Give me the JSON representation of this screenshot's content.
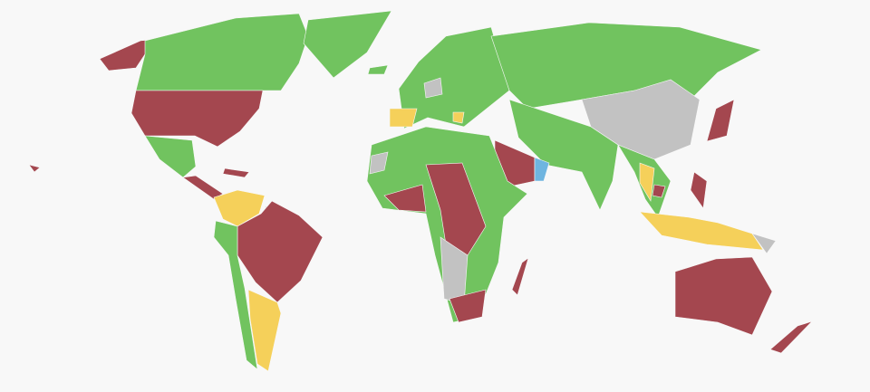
{
  "palette": [
    "#a4474f",
    "#71c35f",
    "#f5d05a",
    "#c2c2c2",
    "#6fb5e0"
  ]
}
